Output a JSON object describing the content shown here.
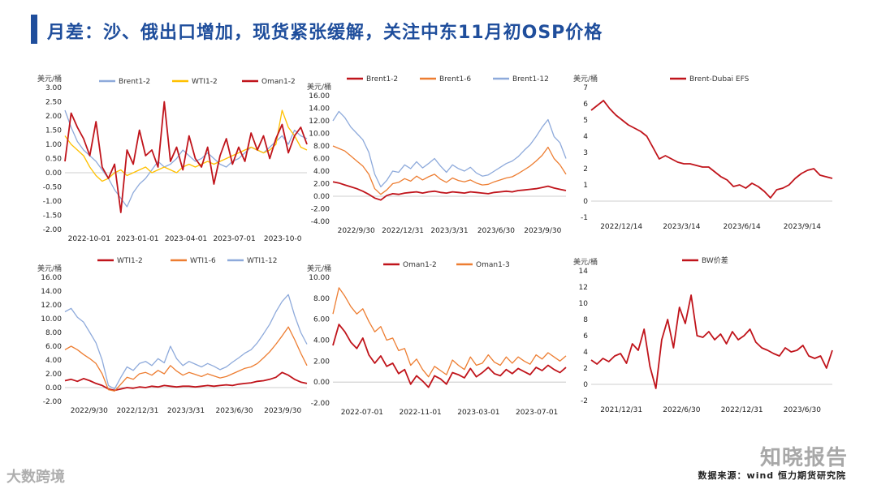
{
  "header": {
    "title": "月差：沙、俄出口增加，现货紧张缓解，关注中东11月初OSP价格"
  },
  "footer": {
    "source": "数据来源：wind 恒力期货研究院"
  },
  "watermarks": {
    "right": "知晓报告",
    "left": "大数跨境"
  },
  "colors": {
    "red": "#c0141b",
    "orange": "#ed7d31",
    "blue": "#8eaadb",
    "yellow": "#ffc000",
    "title": "#1f4e9c"
  },
  "chart_data": [
    {
      "id": "c1",
      "type": "line",
      "unit": "美元/桶",
      "ylim": [
        -2,
        3
      ],
      "yticks": [
        "3.00",
        "2.50",
        "2.00",
        "1.50",
        "1.00",
        "0.50",
        "0.00",
        "-0.50",
        "-1.00",
        "-1.50",
        "-2.00"
      ],
      "xticks": [
        "2022-10-01",
        "2023-01-01",
        "2023-04-01",
        "2023-07-01",
        "2023-10-0"
      ],
      "series": [
        {
          "name": "Brent1-2",
          "color": "#8eaadb",
          "values": [
            2.2,
            1.6,
            1.1,
            0.8,
            0.6,
            0.4,
            0.1,
            -0.2,
            -0.6,
            -0.9,
            -1.2,
            -0.7,
            -0.4,
            -0.2,
            0.1,
            0.4,
            0.2,
            0.3,
            0.5,
            0.8,
            0.6,
            0.4,
            0.5,
            0.7,
            0.5,
            0.3,
            0.2,
            0.4,
            0.5,
            0.7,
            0.9,
            0.8,
            0.7,
            0.9,
            1.1,
            1.3,
            1.0,
            1.5,
            1.3,
            1.2
          ]
        },
        {
          "name": "WTI1-2",
          "color": "#ffc000",
          "values": [
            1.3,
            1.0,
            0.8,
            0.6,
            0.2,
            -0.1,
            -0.3,
            -0.2,
            0.0,
            0.1,
            -0.1,
            0.0,
            0.1,
            0.2,
            0.0,
            0.1,
            0.2,
            0.1,
            0.0,
            0.2,
            0.3,
            0.2,
            0.3,
            0.4,
            0.3,
            0.4,
            0.5,
            0.6,
            0.7,
            0.8,
            0.9,
            0.8,
            0.7,
            0.8,
            1.0,
            2.2,
            1.6,
            1.3,
            0.9,
            0.8
          ]
        },
        {
          "name": "Oman1-2",
          "color": "#c0141b",
          "values": [
            0.4,
            2.1,
            1.6,
            1.2,
            0.6,
            1.8,
            0.2,
            -0.2,
            0.3,
            -1.4,
            0.8,
            0.3,
            1.5,
            0.6,
            0.8,
            0.2,
            2.5,
            0.4,
            0.9,
            0.1,
            1.3,
            0.5,
            0.2,
            0.9,
            -0.4,
            0.6,
            1.2,
            0.3,
            0.9,
            0.4,
            1.4,
            0.8,
            1.3,
            0.5,
            1.2,
            1.7,
            0.7,
            1.3,
            1.6,
            1.0
          ]
        }
      ]
    },
    {
      "id": "c2",
      "type": "line",
      "unit": "美元/桶",
      "ylim": [
        -4,
        16
      ],
      "yticks": [
        "16.00",
        "14.00",
        "12.00",
        "10.00",
        "8.00",
        "6.00",
        "4.00",
        "2.00",
        "0.00",
        "-2.00",
        "-4.00"
      ],
      "xticks": [
        "2022/9/30",
        "2022/12/31",
        "2023/3/31",
        "2023/6/30",
        "2023/9/30"
      ],
      "series": [
        {
          "name": "Brent1-2",
          "color": "#c0141b",
          "values": [
            2.3,
            2.1,
            1.8,
            1.5,
            1.2,
            0.8,
            0.3,
            -0.3,
            -0.6,
            0.1,
            0.4,
            0.3,
            0.5,
            0.6,
            0.7,
            0.5,
            0.7,
            0.8,
            0.6,
            0.5,
            0.7,
            0.6,
            0.5,
            0.7,
            0.6,
            0.5,
            0.4,
            0.6,
            0.7,
            0.8,
            0.7,
            0.9,
            1.0,
            1.1,
            1.2,
            1.4,
            1.6,
            1.3,
            1.1,
            0.9
          ]
        },
        {
          "name": "Brent1-6",
          "color": "#ed7d31",
          "values": [
            8.0,
            7.6,
            7.2,
            6.4,
            5.6,
            4.8,
            3.5,
            1.2,
            0.3,
            1.0,
            2.0,
            2.2,
            2.8,
            2.4,
            3.2,
            2.6,
            3.1,
            3.5,
            2.7,
            2.2,
            2.9,
            2.5,
            2.3,
            2.6,
            2.1,
            1.8,
            1.9,
            2.3,
            2.6,
            2.9,
            3.1,
            3.6,
            4.2,
            4.8,
            5.6,
            6.5,
            7.8,
            6.0,
            5.0,
            3.5
          ]
        },
        {
          "name": "Brent1-12",
          "color": "#8eaadb",
          "values": [
            12.0,
            13.5,
            12.5,
            11.0,
            10.0,
            9.0,
            7.0,
            3.5,
            1.5,
            2.5,
            4.0,
            3.8,
            5.0,
            4.4,
            5.5,
            4.5,
            5.2,
            6.0,
            4.8,
            3.8,
            5.0,
            4.4,
            4.0,
            4.6,
            3.7,
            3.2,
            3.4,
            4.0,
            4.6,
            5.2,
            5.6,
            6.3,
            7.3,
            8.2,
            9.5,
            11.0,
            12.2,
            9.5,
            8.5,
            6.0
          ]
        }
      ]
    },
    {
      "id": "c3",
      "type": "line",
      "unit": "美元/桶",
      "ylim": [
        -1,
        7
      ],
      "yticks": [
        "7",
        "6",
        "5",
        "4",
        "3",
        "2",
        "1",
        "0",
        "-1"
      ],
      "xticks": [
        "2022/12/14",
        "2023/3/14",
        "2023/6/14",
        "2023/9/14"
      ],
      "series": [
        {
          "name": "Brent-Dubai EFS",
          "color": "#c0141b",
          "values": [
            5.6,
            5.9,
            6.2,
            5.7,
            5.3,
            5.0,
            4.7,
            4.5,
            4.3,
            4.0,
            3.3,
            2.6,
            2.8,
            2.6,
            2.4,
            2.3,
            2.3,
            2.2,
            2.1,
            2.1,
            1.8,
            1.5,
            1.3,
            0.9,
            1.0,
            0.8,
            1.1,
            0.9,
            0.6,
            0.2,
            0.7,
            0.8,
            1.0,
            1.4,
            1.7,
            1.9,
            2.0,
            1.6,
            1.5,
            1.4
          ]
        }
      ]
    },
    {
      "id": "c4",
      "type": "line",
      "unit": "美元/桶",
      "ylim": [
        -2,
        16
      ],
      "yticks": [
        "16.00",
        "14.00",
        "12.00",
        "10.00",
        "8.00",
        "6.00",
        "4.00",
        "2.00",
        "0.00",
        "-2.00"
      ],
      "xticks": [
        "2022/9/30",
        "2022/12/31",
        "2023/3/31",
        "2023/6/30",
        "2023/9/30"
      ],
      "series": [
        {
          "name": "WTI1-2",
          "color": "#c0141b",
          "values": [
            1.0,
            1.2,
            0.9,
            1.3,
            1.0,
            0.6,
            0.3,
            -0.2,
            -0.4,
            -0.2,
            0.0,
            -0.1,
            0.1,
            0.0,
            0.2,
            0.1,
            0.3,
            0.2,
            0.1,
            0.2,
            0.2,
            0.1,
            0.2,
            0.3,
            0.2,
            0.3,
            0.4,
            0.3,
            0.5,
            0.6,
            0.7,
            0.9,
            1.0,
            1.2,
            1.5,
            2.2,
            1.8,
            1.2,
            0.8,
            0.6
          ]
        },
        {
          "name": "WTI1-6",
          "color": "#ed7d31",
          "values": [
            5.5,
            6.0,
            5.5,
            4.8,
            4.2,
            3.5,
            2.0,
            -0.3,
            -0.5,
            0.5,
            1.5,
            1.2,
            2.0,
            2.2,
            1.8,
            2.5,
            2.0,
            3.2,
            2.4,
            1.8,
            2.2,
            1.9,
            1.6,
            2.0,
            1.7,
            1.4,
            1.6,
            2.0,
            2.4,
            2.8,
            3.0,
            3.5,
            4.3,
            5.2,
            6.3,
            7.5,
            8.8,
            7.0,
            5.0,
            3.2
          ]
        },
        {
          "name": "WTI1-12",
          "color": "#8eaadb",
          "values": [
            11.0,
            11.5,
            10.2,
            9.5,
            8.0,
            6.5,
            4.0,
            0.3,
            -0.2,
            1.5,
            3.0,
            2.5,
            3.5,
            3.8,
            3.2,
            4.2,
            3.6,
            6.0,
            4.2,
            3.2,
            3.8,
            3.4,
            3.0,
            3.5,
            3.1,
            2.6,
            3.0,
            3.7,
            4.3,
            5.0,
            5.5,
            6.5,
            7.8,
            9.2,
            11.0,
            12.5,
            13.5,
            10.5,
            8.0,
            6.3
          ]
        }
      ]
    },
    {
      "id": "c5",
      "type": "line",
      "unit": "美元/桶",
      "ylim": [
        -2,
        10
      ],
      "yticks": [
        "10.00",
        "8.00",
        "6.00",
        "4.00",
        "2.00",
        "0.00",
        "-2.00"
      ],
      "xticks": [
        "2022-07-01",
        "2022-11-01",
        "2023-03-01",
        "2023-07-01"
      ],
      "series": [
        {
          "name": "Oman1-2",
          "color": "#c0141b",
          "values": [
            3.5,
            5.5,
            4.8,
            3.8,
            3.2,
            4.2,
            2.6,
            1.8,
            2.5,
            1.5,
            1.8,
            0.8,
            1.2,
            -0.2,
            0.6,
            0.1,
            -0.5,
            0.6,
            0.3,
            -0.2,
            0.9,
            0.7,
            0.4,
            1.3,
            0.5,
            0.9,
            1.4,
            0.8,
            0.6,
            1.2,
            0.8,
            1.3,
            1.0,
            0.7,
            1.4,
            1.1,
            1.6,
            1.2,
            0.9,
            1.4
          ]
        },
        {
          "name": "Oman1-3",
          "color": "#ed7d31",
          "values": [
            6.5,
            9.0,
            8.2,
            7.2,
            6.5,
            7.0,
            5.8,
            4.8,
            5.3,
            4.0,
            4.2,
            3.0,
            3.2,
            1.6,
            2.2,
            1.2,
            0.5,
            1.5,
            1.1,
            0.7,
            2.1,
            1.6,
            1.2,
            2.4,
            1.6,
            1.8,
            2.6,
            1.9,
            1.6,
            2.4,
            1.8,
            2.4,
            2.0,
            1.7,
            2.6,
            2.2,
            2.8,
            2.4,
            2.0,
            2.5
          ]
        }
      ]
    },
    {
      "id": "c6",
      "type": "line",
      "unit": "美元/桶",
      "ylim": [
        -2,
        14
      ],
      "yticks": [
        "14",
        "12",
        "10",
        "8",
        "6",
        "4",
        "2",
        "0",
        "-2"
      ],
      "xticks": [
        "2021/12/31",
        "2022/6/30",
        "2022/12/31",
        "2023/6/30"
      ],
      "series": [
        {
          "name": "BW价差",
          "color": "#c0141b",
          "values": [
            3.0,
            2.5,
            3.2,
            2.8,
            3.5,
            3.8,
            2.6,
            5.0,
            4.2,
            6.8,
            2.2,
            -0.5,
            5.5,
            8.0,
            4.5,
            9.5,
            7.5,
            11.0,
            6.0,
            5.8,
            6.5,
            5.5,
            6.2,
            5.0,
            6.5,
            5.5,
            6.0,
            6.8,
            5.2,
            4.5,
            4.2,
            3.8,
            3.5,
            4.5,
            4.0,
            4.2,
            4.8,
            3.5,
            3.2,
            3.5,
            2.0,
            4.2
          ]
        }
      ]
    }
  ]
}
